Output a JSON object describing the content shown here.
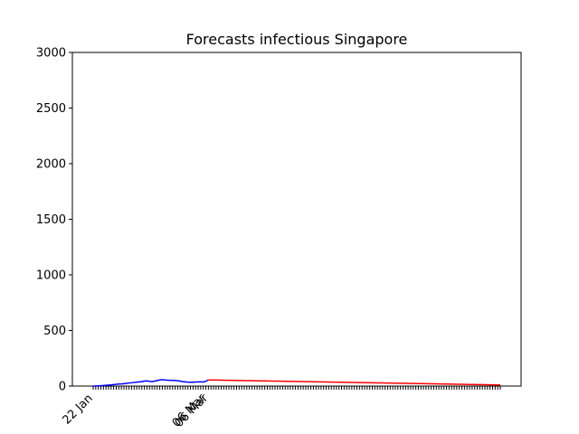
{
  "chart_data": {
    "type": "line",
    "title": "Forecasts infectious Singapore",
    "xlabel": "",
    "ylabel": "",
    "ylim": [
      0,
      3000
    ],
    "yticks": [
      0,
      500,
      1000,
      1500,
      2000,
      2500,
      3000
    ],
    "x_start": "22 Jan",
    "x_end": "29 Jun",
    "x_tick_labels": [
      {
        "index": 0,
        "label": "22 Jan"
      },
      {
        "index": 44,
        "label": "06 Mar"
      },
      {
        "index": 45,
        "label": "06 Mar"
      }
    ],
    "grid": false,
    "legend": "none",
    "series": [
      {
        "color": "#0000ff",
        "x_start_index": 0,
        "values": [
          0,
          1,
          2,
          3,
          5,
          7,
          9,
          10,
          13,
          16,
          18,
          19,
          21,
          24,
          28,
          30,
          33,
          36,
          38,
          40,
          45,
          47,
          43,
          40,
          45,
          50,
          55,
          58,
          55,
          53,
          52,
          52,
          50,
          48,
          45,
          40,
          38,
          36,
          35,
          35,
          37,
          38,
          38,
          37,
          43,
          55
        ]
      },
      {
        "color": "#ff0000",
        "x_start_index": 45,
        "x_end_index": 159,
        "start_value": 55,
        "end_value": 10
      }
    ]
  }
}
